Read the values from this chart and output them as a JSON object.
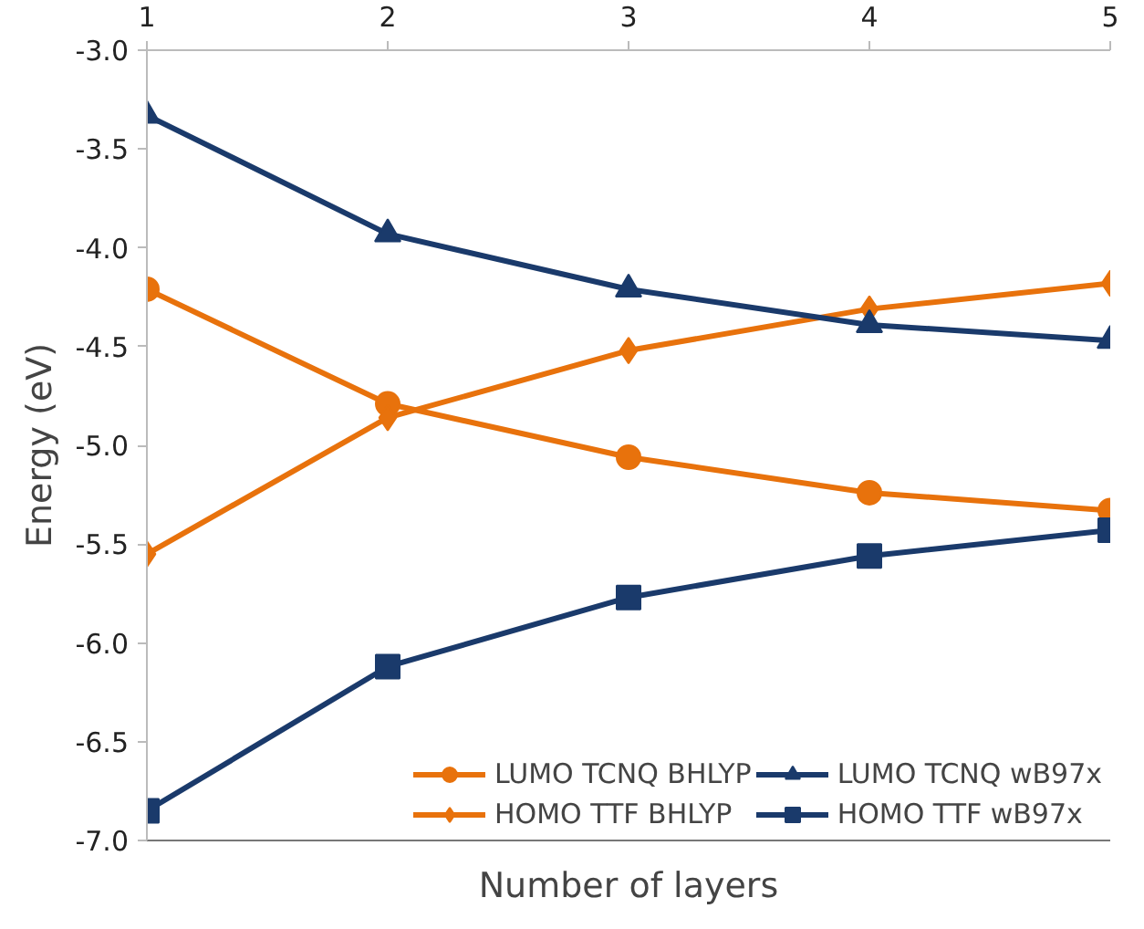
{
  "chart_data": {
    "type": "line",
    "xlabel": "Number of layers",
    "ylabel": "Energy (eV)",
    "x": [
      1,
      2,
      3,
      4,
      5
    ],
    "xlim": [
      1,
      5
    ],
    "xticks": [
      1,
      2,
      3,
      4,
      5
    ],
    "ylim": [
      -7.0,
      -3.0
    ],
    "yticks": [
      {
        "value": -7.0,
        "label": "-7.0"
      },
      {
        "value": -6.5,
        "label": "-6.5"
      },
      {
        "value": -6.0,
        "label": "-6.0"
      },
      {
        "value": -5.5,
        "label": "-5.5"
      },
      {
        "value": -5.0,
        "label": "-5.0"
      },
      {
        "value": -4.5,
        "label": "-4.5"
      },
      {
        "value": -4.0,
        "label": "-4.0"
      },
      {
        "value": -3.5,
        "label": "-3.5"
      },
      {
        "value": -3.0,
        "label": "-3.0"
      }
    ],
    "grid": false,
    "legend": "bottom right",
    "line_style": "solid",
    "series": [
      {
        "name": "LUMO TCNQ BHLYP",
        "color": "#e8720c",
        "marker": "circle",
        "values": [
          -4.21,
          -4.79,
          -5.06,
          -5.24,
          -5.33
        ]
      },
      {
        "name": "HOMO TTF BHLYP",
        "color": "#e8720c",
        "marker": "diamond",
        "values": [
          -5.55,
          -4.86,
          -4.52,
          -4.31,
          -4.18
        ]
      },
      {
        "name": "LUMO TCNQ wB97x",
        "color": "#1a3a6b",
        "marker": "triangle",
        "values": [
          -3.33,
          -3.93,
          -4.21,
          -4.39,
          -4.47
        ]
      },
      {
        "name": "HOMO TTF wB97x",
        "color": "#1a3a6b",
        "marker": "square",
        "values": [
          -6.85,
          -6.12,
          -5.77,
          -5.56,
          -5.43
        ]
      }
    ]
  }
}
